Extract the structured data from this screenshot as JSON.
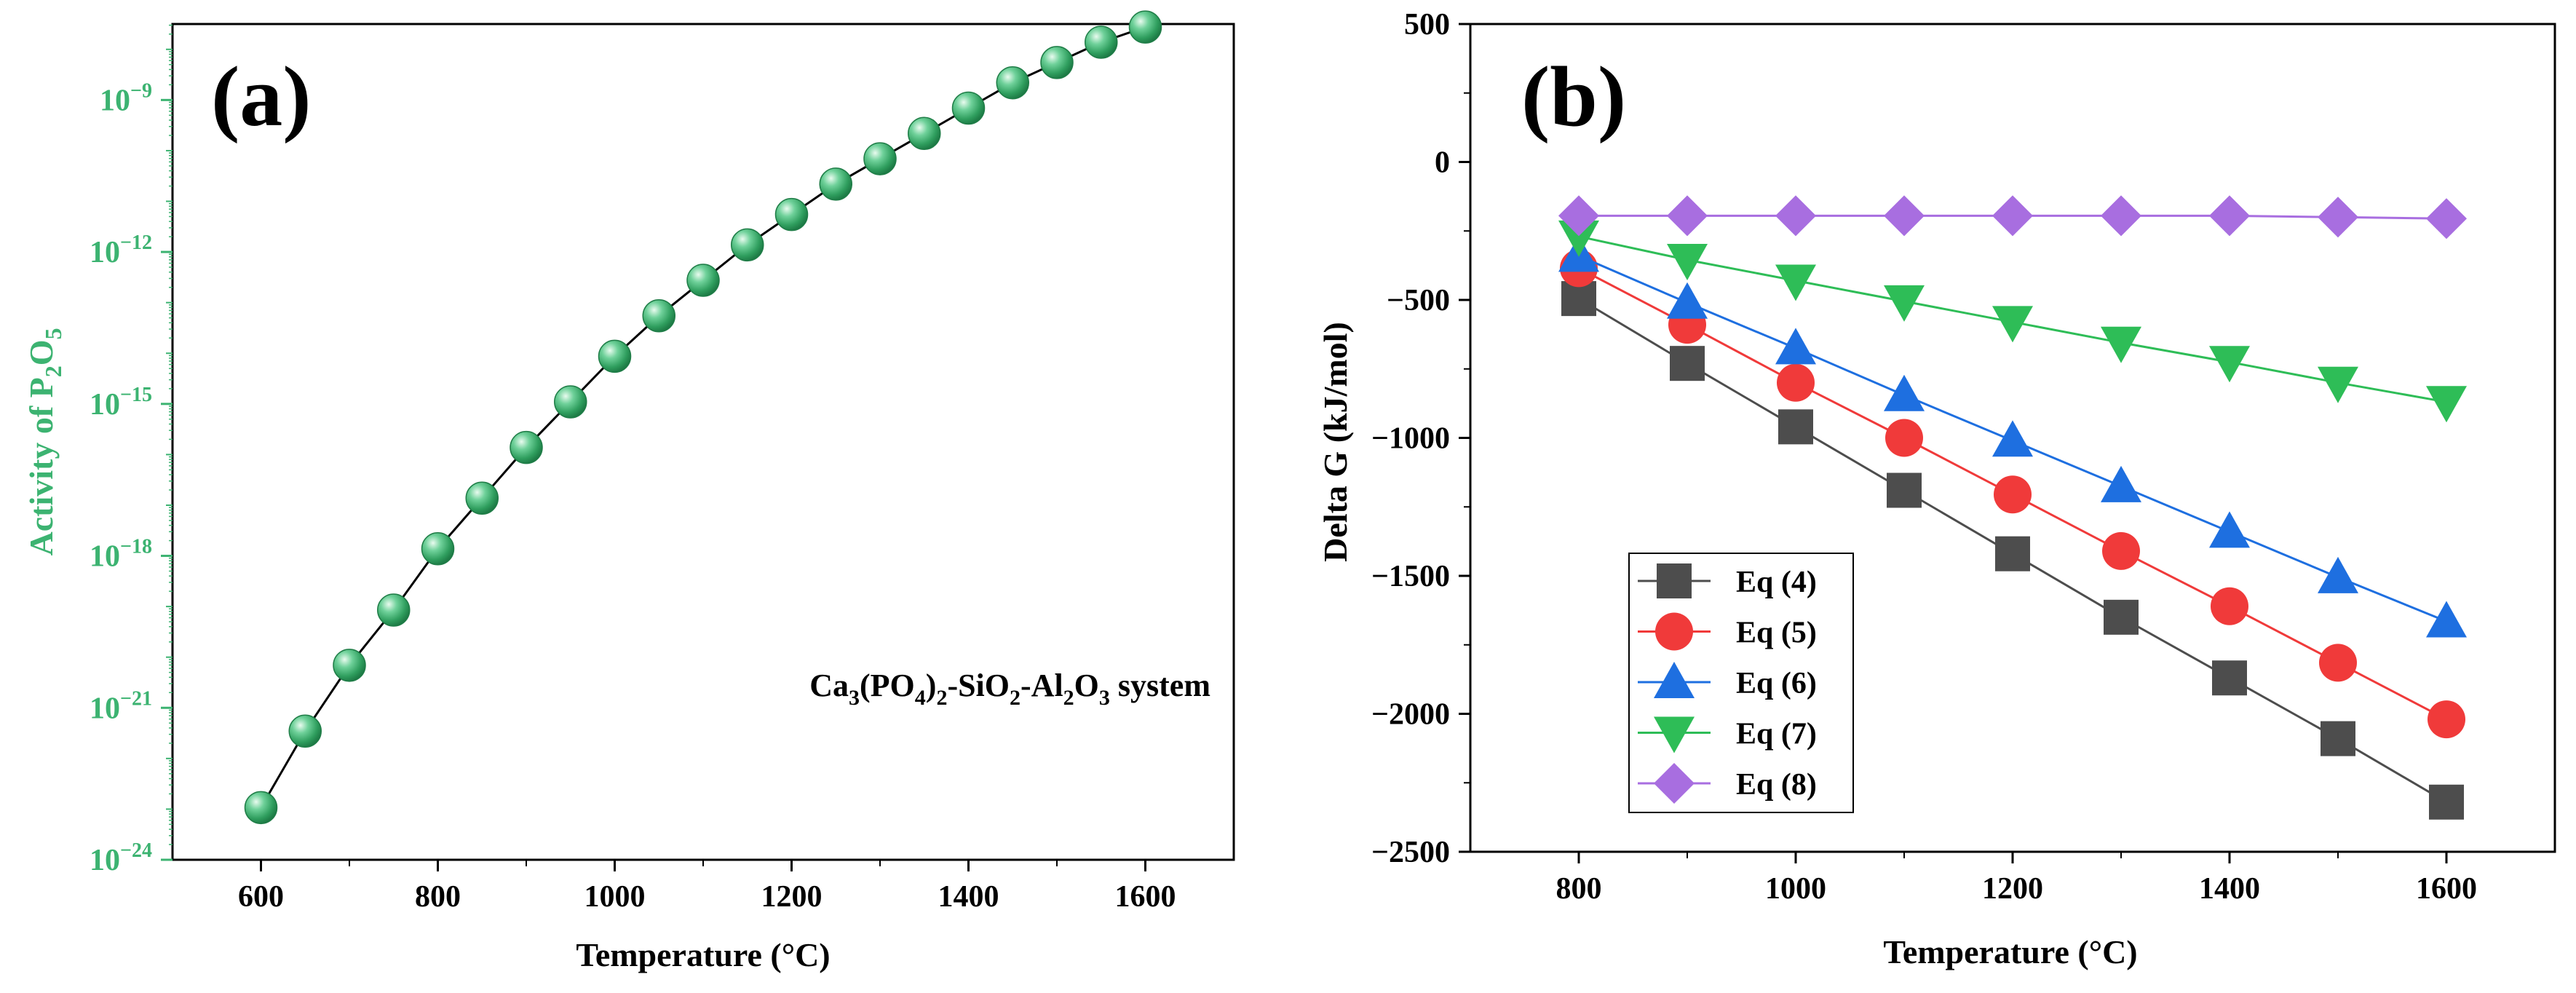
{
  "chart_data": [
    {
      "panel_label": "(a)",
      "type": "scatter",
      "title": "",
      "xlabel": "Temperature (°C)",
      "ylabel": "Activity of P2O5",
      "ylabel_parts": {
        "prefix": "Activity of P",
        "sub1": "2",
        "mid": "O",
        "sub2": "5"
      },
      "xlim": [
        500,
        1700
      ],
      "ylim_log10": [
        -24,
        -7.5
      ],
      "xticks": [
        "600",
        "800",
        "1000",
        "1200",
        "1400",
        "1600"
      ],
      "xtick_values": [
        600,
        800,
        1000,
        1200,
        1400,
        1600
      ],
      "ytick_labels": [
        "10",
        "10",
        "10",
        "10",
        "10",
        "10"
      ],
      "ytick_exponents": [
        "−24",
        "−21",
        "−18",
        "−15",
        "−12",
        "−9"
      ],
      "ytick_values_log10": [
        -24,
        -21,
        -18,
        -15,
        -12,
        -9
      ],
      "annotation": {
        "parts": [
          "Ca",
          "3",
          "(PO",
          "4",
          ")",
          "2",
          "-SiO",
          "2",
          "-Al",
          "2",
          "O",
          "3",
          " system"
        ],
        "text": "Ca3(PO4)2-SiO2-Al2O3 system"
      },
      "x": [
        600,
        650,
        700,
        750,
        800,
        850,
        900,
        950,
        1000,
        1050,
        1100,
        1150,
        1200,
        1250,
        1300,
        1350,
        1400,
        1450,
        1500,
        1550,
        1600
      ],
      "log10_y": [
        -22.97,
        -21.46,
        -20.16,
        -19.07,
        -17.86,
        -16.86,
        -15.86,
        -14.96,
        -14.06,
        -13.26,
        -12.56,
        -11.86,
        -11.26,
        -10.66,
        -10.16,
        -9.66,
        -9.16,
        -8.66,
        -8.26,
        -7.86,
        -7.56
      ],
      "colors": {
        "marker": "#3cb371",
        "axis_label": "#3cb371",
        "line": "#000000"
      }
    },
    {
      "panel_label": "(b)",
      "type": "line",
      "title": "",
      "xlabel": "Temperature (°C)",
      "ylabel": "Delta G (kJ/mol)",
      "xlim": [
        700,
        1700
      ],
      "ylim": [
        -2500,
        500
      ],
      "xticks": [
        "800",
        "1000",
        "1200",
        "1400",
        "1600"
      ],
      "xtick_values": [
        800,
        1000,
        1200,
        1400,
        1600
      ],
      "yticks": [
        "500",
        "0",
        "−500",
        "−1000",
        "−1500",
        "−2000",
        "−2500"
      ],
      "ytick_values": [
        500,
        0,
        -500,
        -1000,
        -1500,
        -2000,
        -2500
      ],
      "legend_position": "bottom-left",
      "x": [
        800,
        900,
        1000,
        1100,
        1200,
        1300,
        1400,
        1500,
        1600
      ],
      "series": [
        {
          "name": "Eq (4)",
          "marker": "square",
          "color": "#4d4d4d",
          "values": [
            -495,
            -730,
            -960,
            -1190,
            -1420,
            -1650,
            -1870,
            -2090,
            -2320
          ]
        },
        {
          "name": "Eq (5)",
          "marker": "circle",
          "color": "#f03a3a",
          "values": [
            -385,
            -590,
            -800,
            -1000,
            -1205,
            -1410,
            -1610,
            -1815,
            -2020
          ]
        },
        {
          "name": "Eq (6)",
          "marker": "triangle-up",
          "color": "#1e6fe0",
          "values": [
            -340,
            -510,
            -675,
            -845,
            -1010,
            -1175,
            -1340,
            -1505,
            -1665
          ]
        },
        {
          "name": "Eq (7)",
          "marker": "triangle-down",
          "color": "#2ebd57",
          "values": [
            -270,
            -355,
            -430,
            -505,
            -580,
            -655,
            -725,
            -800,
            -870
          ]
        },
        {
          "name": "Eq (8)",
          "marker": "diamond",
          "color": "#a86ee0",
          "values": [
            -195,
            -195,
            -195,
            -195,
            -195,
            -195,
            -195,
            -200,
            -205
          ]
        }
      ]
    }
  ]
}
